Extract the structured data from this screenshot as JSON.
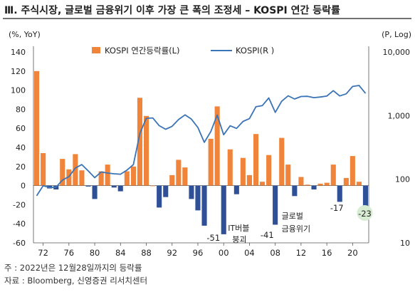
{
  "title": "Ⅲ. 주식시장, 글로벌 금융위기 이후 가장 큰 폭의 조정세 – KOSPI 연간 등락률",
  "notes": [
    "주 : 2022년은 12월28일까지의 등락률",
    "자료 : Bloomberg, 신영증권 리서치센터"
  ],
  "colors": {
    "bar_pos": "#f0843a",
    "bar_neg": "#2f4f96",
    "line": "#3a73b6",
    "highlight": "#d7ecd3"
  },
  "chart_data": {
    "type": "bar+line",
    "left_axis": {
      "unit": "(%, YoY)",
      "range": [
        -60,
        140
      ],
      "ticks": [
        -60,
        -40,
        -20,
        0,
        20,
        40,
        60,
        80,
        100,
        120,
        140
      ]
    },
    "right_axis": {
      "unit": "(P, Log)",
      "scale": "log",
      "range": [
        10,
        10000
      ],
      "ticks": [
        10,
        100,
        1000,
        10000
      ],
      "tick_labels": [
        "10",
        "100",
        "1,000",
        "10,000"
      ]
    },
    "x_ticks": [
      "72",
      "76",
      "80",
      "84",
      "88",
      "92",
      "96",
      "00",
      "04",
      "08",
      "12",
      "16",
      "20"
    ],
    "legend": [
      "KOSPI 연간등락률(L)",
      "KOSPI(R )"
    ],
    "years": [
      1971,
      1972,
      1973,
      1974,
      1975,
      1976,
      1977,
      1978,
      1979,
      1980,
      1981,
      1982,
      1983,
      1984,
      1985,
      1986,
      1987,
      1988,
      1989,
      1990,
      1991,
      1992,
      1993,
      1994,
      1995,
      1996,
      1997,
      1998,
      1999,
      2000,
      2001,
      2002,
      2003,
      2004,
      2005,
      2006,
      2007,
      2008,
      2009,
      2010,
      2011,
      2012,
      2013,
      2014,
      2015,
      2016,
      2017,
      2018,
      2019,
      2020,
      2021,
      2022
    ],
    "bar_series": {
      "name": "KOSPI 연간등락률(L)",
      "values": [
        120,
        34,
        -3,
        -4,
        28,
        17,
        33,
        16,
        -1,
        -14,
        15,
        22,
        -2,
        -6,
        15,
        20,
        92,
        73,
        0,
        -23,
        -12,
        11,
        27,
        19,
        -14,
        -26,
        -42,
        49,
        83,
        -51,
        38,
        -9,
        29,
        11,
        54,
        4,
        32,
        -41,
        50,
        22,
        -11,
        9,
        1,
        -4,
        2,
        3,
        22,
        -17,
        8,
        31,
        4,
        -23
      ]
    },
    "line_series": {
      "name": "KOSPI(R )",
      "values": [
        55,
        79,
        74,
        75,
        97,
        110,
        150,
        170,
        135,
        106,
        130,
        125,
        122,
        120,
        139,
        170,
        525,
        907,
        920,
        696,
        610,
        678,
        866,
        1027,
        880,
        650,
        380,
        560,
        1020,
        500,
        693,
        630,
        810,
        896,
        1379,
        1434,
        1897,
        1124,
        1680,
        2051,
        1826,
        1997,
        2011,
        1916,
        1961,
        2026,
        2467,
        2041,
        2198,
        2873,
        2977,
        2236
      ]
    },
    "annotations": [
      {
        "text": "IT버블\n붕괴",
        "year": 2000
      },
      {
        "text": "-51",
        "year": 2000
      },
      {
        "text": "글로벌\n금융위기",
        "year": 2008
      },
      {
        "text": "-41",
        "year": 2008
      },
      {
        "text": "-17",
        "year": 2018
      },
      {
        "text": "-23",
        "year": 2022
      }
    ]
  }
}
